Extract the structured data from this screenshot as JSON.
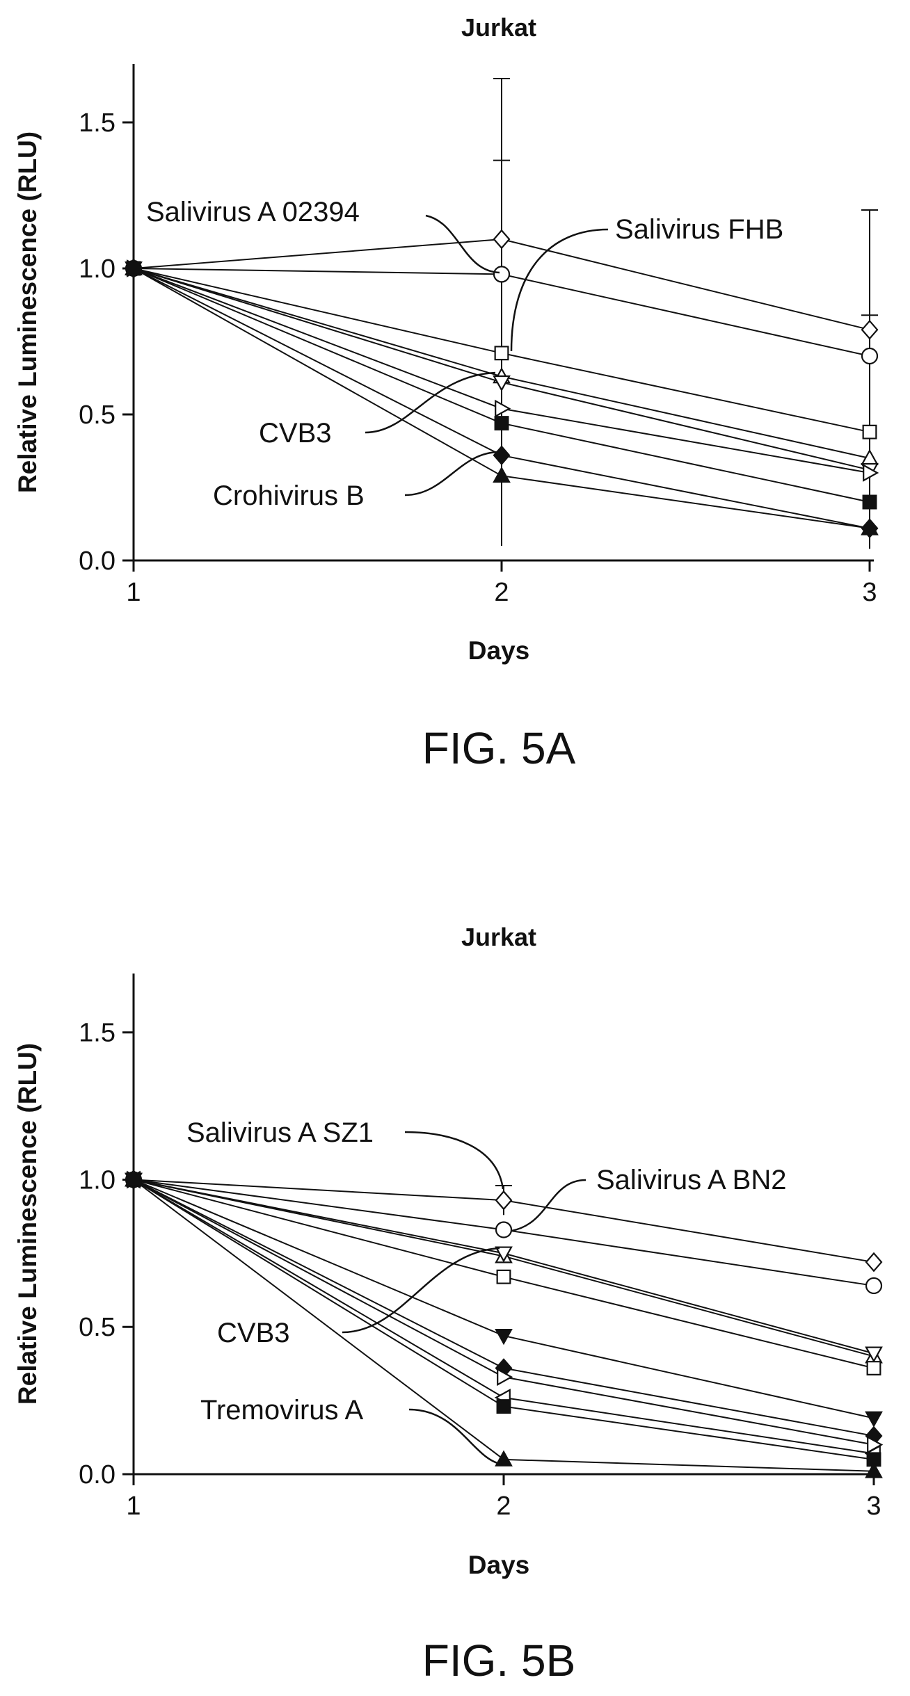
{
  "chart_data": [
    {
      "type": "line",
      "title": "Jurkat",
      "xlabel": "Days",
      "ylabel": "Relative Luminescence (RLU)",
      "x": [
        1,
        2,
        3
      ],
      "xticks": [
        "1",
        "2",
        "3"
      ],
      "yticks": [
        "0.0",
        "0.5",
        "1.0",
        "1.5"
      ],
      "xlim": [
        1,
        3
      ],
      "ylim": [
        0,
        1.7
      ],
      "grid": false,
      "figure_label": "FIG. 5A",
      "series": [
        {
          "marker": "diamond-open",
          "values": [
            1.0,
            1.1,
            0.79
          ],
          "errors": [
            0,
            0.55,
            0.41
          ]
        },
        {
          "marker": "circle-open",
          "values": [
            1.0,
            0.98,
            0.7
          ],
          "errors": [
            0,
            0,
            0
          ]
        },
        {
          "marker": "square-open",
          "values": [
            1.0,
            0.71,
            0.44
          ],
          "errors": [
            0,
            0.66,
            0.4
          ]
        },
        {
          "marker": "triangle-open",
          "values": [
            1.0,
            0.63,
            0.35
          ],
          "errors": [
            0,
            0,
            0
          ]
        },
        {
          "marker": "triangle-down-open",
          "values": [
            1.0,
            0.61,
            0.31
          ],
          "errors": [
            0,
            0,
            0
          ]
        },
        {
          "marker": "triangle-right-open",
          "values": [
            1.0,
            0.52,
            0.3
          ],
          "errors": [
            0,
            0,
            0
          ]
        },
        {
          "marker": "square-filled",
          "values": [
            1.0,
            0.47,
            0.2
          ],
          "errors": [
            0,
            0,
            0
          ]
        },
        {
          "marker": "diamond-filled",
          "values": [
            1.0,
            0.36,
            0.11
          ],
          "errors": [
            0,
            0,
            0
          ]
        },
        {
          "marker": "triangle-filled",
          "values": [
            1.0,
            0.29,
            0.11
          ],
          "errors": [
            0,
            0,
            0
          ]
        }
      ],
      "annotations": [
        {
          "text": "Salivirus A 02394",
          "series": 1
        },
        {
          "text": "Salivirus FHB",
          "series": 2
        },
        {
          "text": "CVB3",
          "series": 3
        },
        {
          "text": "Crohivirus B",
          "series": 7
        }
      ]
    },
    {
      "type": "line",
      "title": "Jurkat",
      "xlabel": "Days",
      "ylabel": "Relative Luminescence (RLU)",
      "x": [
        1,
        2,
        3
      ],
      "xticks": [
        "1",
        "2",
        "3"
      ],
      "yticks": [
        "0.0",
        "0.5",
        "1.0",
        "1.5"
      ],
      "xlim": [
        1,
        3
      ],
      "ylim": [
        0,
        1.7
      ],
      "grid": false,
      "figure_label": "FIG. 5B",
      "series": [
        {
          "marker": "diamond-open",
          "values": [
            1.0,
            0.93,
            0.72
          ],
          "errors": [
            0,
            0.05,
            0
          ]
        },
        {
          "marker": "circle-open",
          "values": [
            1.0,
            0.83,
            0.64
          ],
          "errors": [
            0,
            0,
            0
          ]
        },
        {
          "marker": "triangle-open",
          "values": [
            1.0,
            0.74,
            0.4
          ],
          "errors": [
            0,
            0,
            0
          ]
        },
        {
          "marker": "triangle-down-open",
          "values": [
            1.0,
            0.75,
            0.41
          ],
          "errors": [
            0,
            0,
            0
          ]
        },
        {
          "marker": "square-open",
          "values": [
            1.0,
            0.67,
            0.36
          ],
          "errors": [
            0,
            0,
            0
          ]
        },
        {
          "marker": "triangle-down-filled",
          "values": [
            1.0,
            0.47,
            0.19
          ],
          "errors": [
            0,
            0,
            0
          ]
        },
        {
          "marker": "diamond-filled",
          "values": [
            1.0,
            0.36,
            0.13
          ],
          "errors": [
            0,
            0,
            0
          ]
        },
        {
          "marker": "triangle-right-open",
          "values": [
            1.0,
            0.33,
            0.1
          ],
          "errors": [
            0,
            0,
            0
          ]
        },
        {
          "marker": "triangle-left-open",
          "values": [
            1.0,
            0.26,
            0.07
          ],
          "errors": [
            0,
            0,
            0
          ]
        },
        {
          "marker": "square-filled",
          "values": [
            1.0,
            0.23,
            0.05
          ],
          "errors": [
            0,
            0,
            0
          ]
        },
        {
          "marker": "triangle-filled",
          "values": [
            1.0,
            0.05,
            0.01
          ],
          "errors": [
            0,
            0,
            0
          ]
        }
      ],
      "annotations": [
        {
          "text": "Salivirus A SZ1",
          "series": 0
        },
        {
          "text": "Salivirus A BN2",
          "series": 1
        },
        {
          "text": "CVB3",
          "series": 3
        },
        {
          "text": "Tremovirus A",
          "series": 10
        }
      ]
    }
  ]
}
